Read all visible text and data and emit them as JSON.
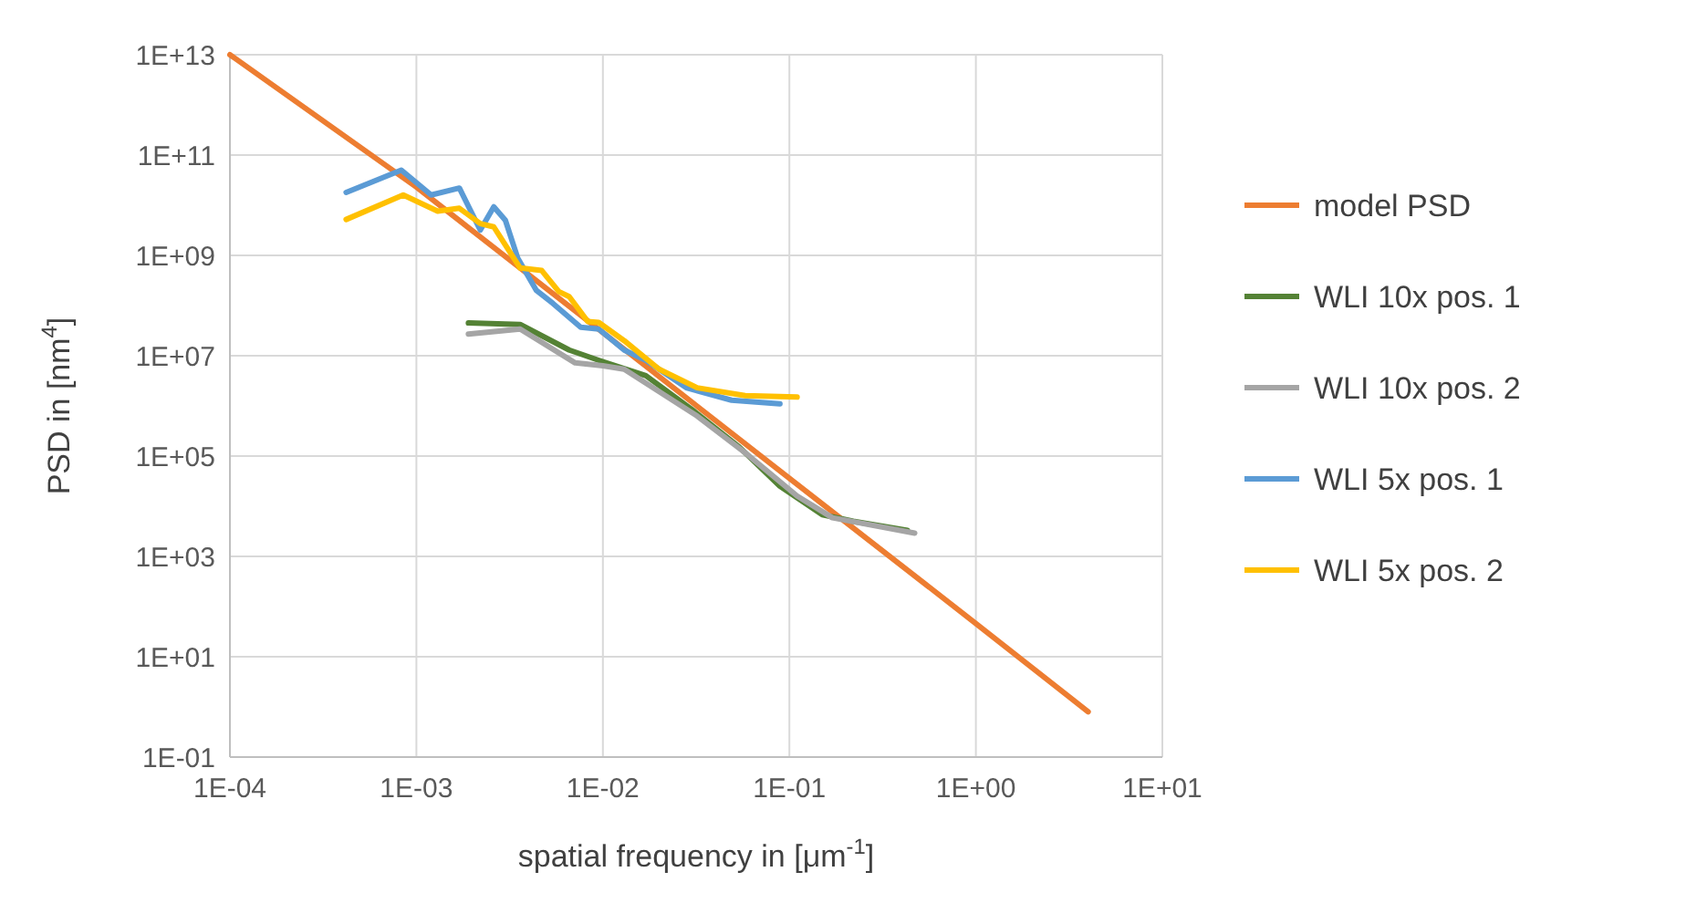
{
  "chart_data": {
    "type": "line",
    "xlabel": "spatial frequency in [μm$^{-1}$]",
    "ylabel": "PSD in [nm$^{4}$]",
    "log": "xy",
    "grid": true,
    "legend": "right",
    "line_style": "solid",
    "xlim": [
      0.0001,
      10
    ],
    "ylim": [
      0.1,
      10000000000000
    ],
    "xticks": [
      {
        "value": 0.0001,
        "label": "1E-04"
      },
      {
        "value": 0.001,
        "label": "1E-03"
      },
      {
        "value": 0.01,
        "label": "1E-02"
      },
      {
        "value": 0.1,
        "label": "1E-01"
      },
      {
        "value": 1,
        "label": "1E+00"
      },
      {
        "value": 10,
        "label": "1E+01"
      }
    ],
    "yticks": [
      {
        "value": 0.1,
        "label": "1E-01"
      },
      {
        "value": 10,
        "label": "1E+01"
      },
      {
        "value": 1000,
        "label": "1E+03"
      },
      {
        "value": 100000,
        "label": "1E+05"
      },
      {
        "value": 10000000,
        "label": "1E+07"
      },
      {
        "value": 1000000000,
        "label": "1E+09"
      },
      {
        "value": 100000000000,
        "label": "1E+11"
      },
      {
        "value": 10000000000000,
        "label": "1E+13"
      }
    ],
    "series": [
      {
        "name": "model PSD",
        "color": "#ed7d31",
        "x": [
          0.0001,
          0.001,
          0.01,
          0.1,
          1,
          4
        ],
        "values": [
          10000000000000,
          23000000000,
          29000000,
          36000,
          46,
          0.8
        ]
      },
      {
        "name": "WLI 10x pos. 1",
        "color": "#548235",
        "x": [
          0.0019,
          0.0036,
          0.0066,
          0.0095,
          0.017,
          0.03,
          0.054,
          0.089,
          0.15,
          0.22,
          0.43
        ],
        "values": [
          45000000,
          42000000,
          13000000,
          8100000,
          4000000,
          850000,
          150000,
          25000,
          6800,
          5000,
          3300
        ]
      },
      {
        "name": "WLI 10x pos. 2",
        "color": "#a5a5a5",
        "x": [
          0.0019,
          0.0036,
          0.0071,
          0.01,
          0.013,
          0.032,
          0.059,
          0.11,
          0.17,
          0.47
        ],
        "values": [
          27000000,
          34000000,
          7200000,
          6300000,
          5400000,
          630000,
          110000,
          16000,
          5900,
          2900
        ]
      },
      {
        "name": "WLI 5x pos. 1",
        "color": "#5b9bd5",
        "x": [
          0.00042,
          0.00083,
          0.0012,
          0.0017,
          0.0022,
          0.0026,
          0.003,
          0.0035,
          0.0044,
          0.0054,
          0.0076,
          0.0095,
          0.013,
          0.017,
          0.028,
          0.049,
          0.089
        ],
        "values": [
          18000000000,
          50000000000,
          16000000000,
          22000000000,
          3200000000,
          9300000000,
          5000000000,
          870000000,
          200000000,
          110000000,
          37000000,
          34000000,
          13000000,
          8100000,
          2300000,
          1300000,
          1100000
        ]
      },
      {
        "name": "WLI 5x pos. 2",
        "color": "#ffc000",
        "x": [
          0.00042,
          0.00085,
          0.0013,
          0.0017,
          0.0022,
          0.0026,
          0.0036,
          0.0047,
          0.0058,
          0.0066,
          0.0083,
          0.0095,
          0.013,
          0.02,
          0.032,
          0.058,
          0.11
        ],
        "values": [
          5200000000,
          16000000000,
          7600000000,
          8700000000,
          4300000000,
          3700000000,
          560000000,
          500000000,
          190000000,
          150000000,
          48000000,
          46000000,
          20000000,
          5400000,
          2300000,
          1600000,
          1500000
        ]
      }
    ]
  }
}
